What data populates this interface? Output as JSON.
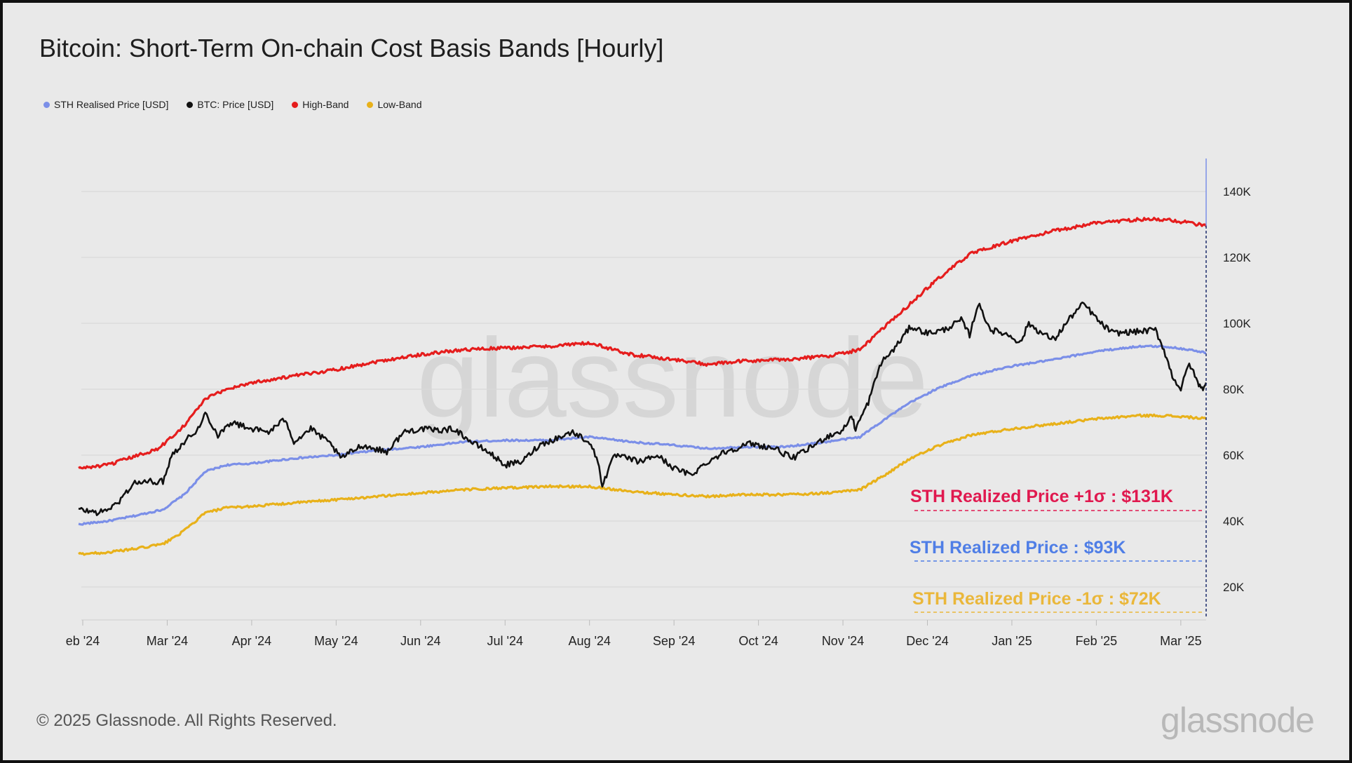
{
  "title": "Bitcoin: Short-Term On-chain Cost Basis Bands [Hourly]",
  "legend": [
    {
      "label": "STH Realised Price [USD]",
      "color": "#7b8fe8"
    },
    {
      "label": "BTC: Price [USD]",
      "color": "#111111"
    },
    {
      "label": "High-Band",
      "color": "#e51d1d"
    },
    {
      "label": "Low-Band",
      "color": "#e8b11a"
    }
  ],
  "footer": {
    "copyright": "© 2025 Glassnode. All Rights Reserved.",
    "brand": "glassnode",
    "watermark": "glassnode"
  },
  "annotations": {
    "high": "STH Realized Price +1σ : $131K",
    "mid": "STH Realized Price  : $93K",
    "low": "STH Realized Price -1σ : $72K"
  },
  "chart_data": {
    "type": "line",
    "title": "Bitcoin: Short-Term On-chain Cost Basis Bands [Hourly]",
    "xlabel": "",
    "ylabel": "",
    "x_ticks": [
      "eb '24",
      "Mar '24",
      "Apr '24",
      "May '24",
      "Jun '24",
      "Jul '24",
      "Aug '24",
      "Sep '24",
      "Oct '24",
      "Nov '24",
      "Dec '24",
      "Jan '25",
      "Feb '25",
      "Mar '25"
    ],
    "y_ticks": [
      "20K",
      "40K",
      "60K",
      "80K",
      "100K",
      "120K",
      "140K"
    ],
    "ylim": [
      10000,
      150000
    ],
    "x_unit": "month index (0 = Feb '24)",
    "x_range": [
      -0.05,
      13.3
    ],
    "grid": true,
    "legend_position": "top-left",
    "series": [
      {
        "name": "STH Realised Price [USD]",
        "color": "#7b8fe8",
        "points": [
          [
            -0.05,
            39000
          ],
          [
            0.3,
            40000
          ],
          [
            0.6,
            41500
          ],
          [
            0.95,
            43500
          ],
          [
            1.2,
            48000
          ],
          [
            1.45,
            55000
          ],
          [
            1.7,
            57000
          ],
          [
            2.0,
            57500
          ],
          [
            2.5,
            59000
          ],
          [
            3.0,
            60000
          ],
          [
            3.5,
            61500
          ],
          [
            4.0,
            62500
          ],
          [
            4.5,
            64000
          ],
          [
            5.0,
            64500
          ],
          [
            5.5,
            64500
          ],
          [
            6.0,
            65500
          ],
          [
            6.5,
            64000
          ],
          [
            7.0,
            63000
          ],
          [
            7.4,
            62000
          ],
          [
            7.8,
            62500
          ],
          [
            8.3,
            62500
          ],
          [
            8.8,
            64000
          ],
          [
            9.2,
            65500
          ],
          [
            9.5,
            71000
          ],
          [
            9.8,
            76000
          ],
          [
            10.1,
            80000
          ],
          [
            10.5,
            84000
          ],
          [
            11.0,
            87000
          ],
          [
            11.5,
            89000
          ],
          [
            12.0,
            91500
          ],
          [
            12.5,
            93000
          ],
          [
            12.8,
            93000
          ],
          [
            13.1,
            92000
          ],
          [
            13.3,
            91000
          ]
        ]
      },
      {
        "name": "BTC: Price [USD]",
        "color": "#111111",
        "points": [
          [
            -0.05,
            43500
          ],
          [
            0.2,
            42500
          ],
          [
            0.4,
            45000
          ],
          [
            0.6,
            51500
          ],
          [
            0.8,
            52000
          ],
          [
            0.95,
            52000
          ],
          [
            1.05,
            60000
          ],
          [
            1.2,
            64000
          ],
          [
            1.4,
            69000
          ],
          [
            1.45,
            73000
          ],
          [
            1.6,
            66000
          ],
          [
            1.75,
            70000
          ],
          [
            2.0,
            68000
          ],
          [
            2.2,
            67000
          ],
          [
            2.4,
            71000
          ],
          [
            2.5,
            64000
          ],
          [
            2.7,
            68000
          ],
          [
            2.95,
            63000
          ],
          [
            3.05,
            59000
          ],
          [
            3.3,
            63000
          ],
          [
            3.6,
            61000
          ],
          [
            3.8,
            67000
          ],
          [
            4.0,
            68000
          ],
          [
            4.2,
            67500
          ],
          [
            4.4,
            68000
          ],
          [
            4.6,
            64000
          ],
          [
            4.8,
            61000
          ],
          [
            5.0,
            57000
          ],
          [
            5.2,
            58000
          ],
          [
            5.4,
            63000
          ],
          [
            5.6,
            65000
          ],
          [
            5.8,
            67000
          ],
          [
            6.0,
            64000
          ],
          [
            6.1,
            58000
          ],
          [
            6.15,
            51000
          ],
          [
            6.3,
            60000
          ],
          [
            6.6,
            58000
          ],
          [
            6.8,
            60000
          ],
          [
            7.0,
            56000
          ],
          [
            7.2,
            54000
          ],
          [
            7.4,
            58000
          ],
          [
            7.6,
            61000
          ],
          [
            7.9,
            63500
          ],
          [
            8.2,
            62000
          ],
          [
            8.4,
            59000
          ],
          [
            8.6,
            62000
          ],
          [
            8.8,
            65500
          ],
          [
            9.0,
            67500
          ],
          [
            9.1,
            72000
          ],
          [
            9.15,
            68000
          ],
          [
            9.3,
            76000
          ],
          [
            9.45,
            88000
          ],
          [
            9.6,
            92000
          ],
          [
            9.8,
            99000
          ],
          [
            10.0,
            97000
          ],
          [
            10.2,
            98000
          ],
          [
            10.4,
            101000
          ],
          [
            10.5,
            96500
          ],
          [
            10.6,
            106000
          ],
          [
            10.75,
            98000
          ],
          [
            10.9,
            97000
          ],
          [
            11.0,
            96000
          ],
          [
            11.1,
            94000
          ],
          [
            11.2,
            100000
          ],
          [
            11.35,
            97000
          ],
          [
            11.5,
            95000
          ],
          [
            11.7,
            102000
          ],
          [
            11.85,
            106000
          ],
          [
            11.95,
            103000
          ],
          [
            12.05,
            100000
          ],
          [
            12.2,
            97000
          ],
          [
            12.5,
            97500
          ],
          [
            12.7,
            98000
          ],
          [
            12.8,
            92000
          ],
          [
            12.9,
            84000
          ],
          [
            13.0,
            80000
          ],
          [
            13.1,
            88000
          ],
          [
            13.2,
            82000
          ],
          [
            13.25,
            80000
          ],
          [
            13.3,
            82000
          ]
        ]
      },
      {
        "name": "High-Band",
        "color": "#e51d1d",
        "points": [
          [
            -0.05,
            56000
          ],
          [
            0.3,
            57000
          ],
          [
            0.6,
            59500
          ],
          [
            0.9,
            62000
          ],
          [
            1.2,
            69000
          ],
          [
            1.45,
            77000
          ],
          [
            1.7,
            80000
          ],
          [
            2.0,
            82000
          ],
          [
            2.5,
            84000
          ],
          [
            3.0,
            86000
          ],
          [
            3.5,
            88500
          ],
          [
            4.0,
            90500
          ],
          [
            4.5,
            92000
          ],
          [
            5.0,
            92500
          ],
          [
            5.5,
            93000
          ],
          [
            6.0,
            94000
          ],
          [
            6.5,
            90500
          ],
          [
            7.0,
            89000
          ],
          [
            7.4,
            87500
          ],
          [
            7.8,
            88500
          ],
          [
            8.3,
            89000
          ],
          [
            8.8,
            90000
          ],
          [
            9.2,
            92000
          ],
          [
            9.5,
            99000
          ],
          [
            9.8,
            106000
          ],
          [
            10.1,
            113000
          ],
          [
            10.5,
            121000
          ],
          [
            11.0,
            125000
          ],
          [
            11.5,
            128000
          ],
          [
            12.0,
            130500
          ],
          [
            12.5,
            131500
          ],
          [
            12.8,
            131500
          ],
          [
            13.1,
            130500
          ],
          [
            13.3,
            129500
          ]
        ]
      },
      {
        "name": "Low-Band",
        "color": "#e8b11a",
        "points": [
          [
            -0.05,
            30000
          ],
          [
            0.3,
            30500
          ],
          [
            0.6,
            31500
          ],
          [
            0.95,
            33000
          ],
          [
            1.2,
            37000
          ],
          [
            1.45,
            42500
          ],
          [
            1.7,
            44000
          ],
          [
            2.0,
            44500
          ],
          [
            2.5,
            45500
          ],
          [
            3.0,
            46500
          ],
          [
            3.5,
            47500
          ],
          [
            4.0,
            48500
          ],
          [
            4.5,
            49500
          ],
          [
            5.0,
            50000
          ],
          [
            5.5,
            50500
          ],
          [
            6.0,
            50500
          ],
          [
            6.5,
            49000
          ],
          [
            7.0,
            48000
          ],
          [
            7.4,
            47500
          ],
          [
            7.8,
            48000
          ],
          [
            8.3,
            48000
          ],
          [
            8.8,
            48500
          ],
          [
            9.2,
            49500
          ],
          [
            9.5,
            54000
          ],
          [
            9.8,
            59000
          ],
          [
            10.1,
            62500
          ],
          [
            10.5,
            66000
          ],
          [
            11.0,
            68000
          ],
          [
            11.5,
            69500
          ],
          [
            12.0,
            71000
          ],
          [
            12.5,
            72000
          ],
          [
            12.8,
            72000
          ],
          [
            13.1,
            71500
          ],
          [
            13.3,
            71000
          ]
        ]
      }
    ]
  }
}
